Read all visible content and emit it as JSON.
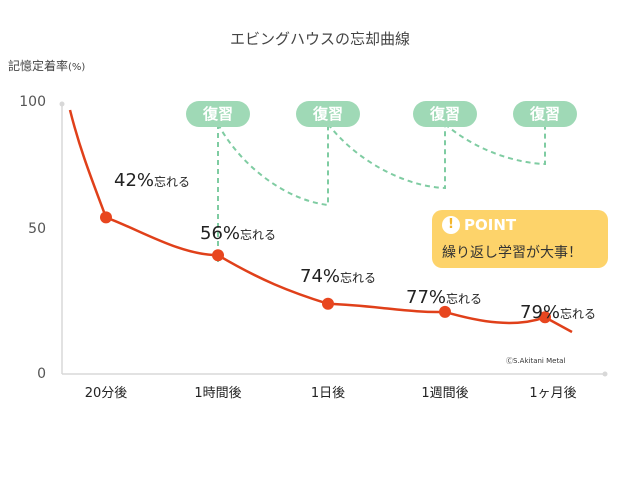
{
  "chart_data": {
    "type": "line",
    "title": "エビングハウスの忘却曲線",
    "ylabel": "記憶定着率",
    "ylabel_unit": "(%)",
    "ylim": [
      0,
      100
    ],
    "yticks": [
      "100",
      "50",
      "0"
    ],
    "categories": [
      "20分後",
      "1時間後",
      "1日後",
      "1週間後",
      "1ヶ月後"
    ],
    "points": [
      {
        "category": "20分後",
        "retention": 58,
        "label": "42%",
        "suffix": "忘れる"
      },
      {
        "category": "1時間後",
        "retention": 44,
        "label": "56%",
        "suffix": "忘れる"
      },
      {
        "category": "1日後",
        "retention": 26,
        "label": "74%",
        "suffix": "忘れる"
      },
      {
        "category": "1週間後",
        "retention": 23,
        "label": "77%",
        "suffix": "忘れる"
      },
      {
        "category": "1ヶ月後",
        "retention": 21,
        "label": "79%",
        "suffix": "忘れる"
      }
    ],
    "review_label": "復習",
    "review_count": 4,
    "grid": false,
    "colors": {
      "curve": "#e0401a",
      "point": "#e8461f",
      "review": "#7fcca2",
      "axis": "#d8d8d8",
      "point_box": "#fdd36a"
    }
  },
  "callout": {
    "icon": "exclamation-icon",
    "icon_glyph": "!",
    "heading": "POINT",
    "text": "繰り返し学習が大事！"
  },
  "credit": "ⒸS.Akitani Metal"
}
